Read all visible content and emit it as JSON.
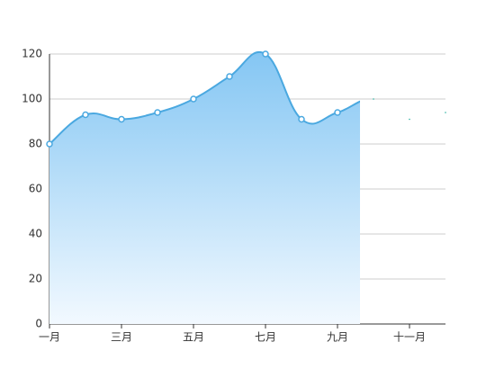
{
  "chart_data": {
    "type": "area",
    "categories": [
      "一月",
      null,
      "三月",
      null,
      "五月",
      null,
      "七月",
      null,
      "九月",
      null,
      "十一月",
      null
    ],
    "values": [
      80,
      93,
      91,
      94,
      100,
      110,
      120,
      91,
      94,
      100,
      91,
      94
    ],
    "color": "#4aa8e0",
    "ylim": [
      0,
      120
    ],
    "yticks": [
      0,
      20,
      40,
      60,
      80,
      100,
      120
    ],
    "grid": true
  }
}
